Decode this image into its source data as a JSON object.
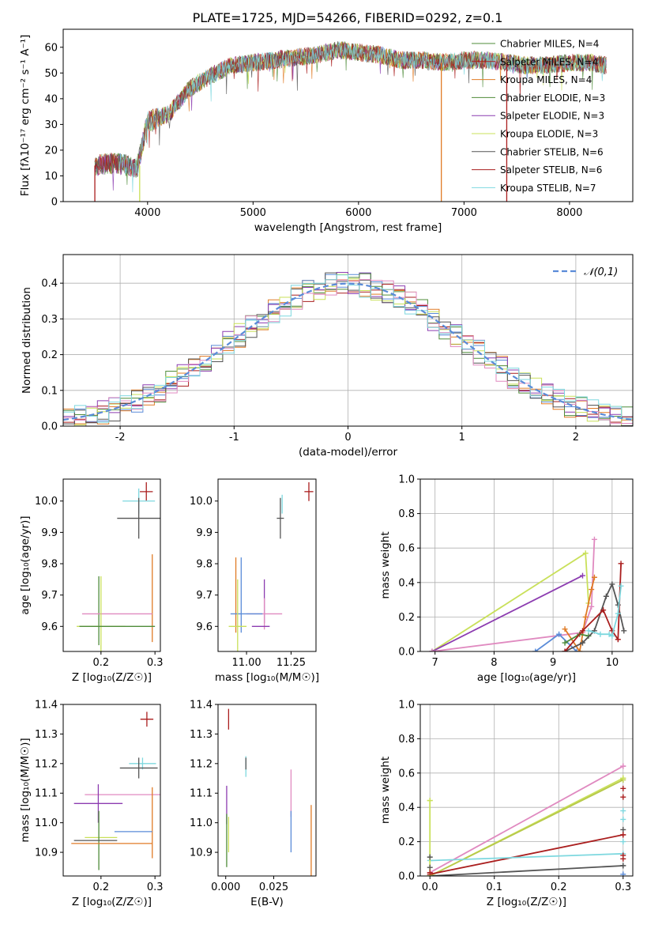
{
  "title": "PLATE=1725, MJD=54266, FIBERID=0292, z=0.1",
  "colors": {
    "orange": "#e07b26",
    "blue": "#5a8bd8",
    "red": "#aa1e1e",
    "purple": "#8c3cb0",
    "green": "#4f8c3a",
    "yellowgreen": "#c9e05a",
    "gray": "#555555",
    "pink": "#e08ac0",
    "cyan": "#7ed8df",
    "olive": "#b7c94a",
    "darkred": "#aa2020"
  },
  "chart_data": [
    {
      "id": "spectrum",
      "type": "line",
      "xlabel": "wavelength [Angstrom, rest frame]",
      "ylabel": "Flux [fλ10⁻¹⁷ erg cm⁻² s⁻¹ A⁻¹]",
      "xlim": [
        3200,
        8600
      ],
      "ylim": [
        0,
        67
      ],
      "xticks": [
        4000,
        5000,
        6000,
        7000,
        8000
      ],
      "yticks": [
        0,
        10,
        20,
        30,
        40,
        50,
        60
      ],
      "grid": false,
      "legend_position": "right",
      "series": [
        {
          "name": "Chabrier MILES, N_SSP=4",
          "color": "#4f8c3a"
        },
        {
          "name": "Salpeter MILES, N_SSP=4",
          "color": "#aa1e1e"
        },
        {
          "name": "Kroupa MILES, N_SSP=4",
          "color": "#e07b26"
        },
        {
          "name": "Chabrier ELODIE, N_SSP=3",
          "color": "#4f8c3a"
        },
        {
          "name": "Salpeter ELODIE, N_SSP=3",
          "color": "#8c3cb0"
        },
        {
          "name": "Kroupa ELODIE, N_SSP=3",
          "color": "#c9e05a"
        },
        {
          "name": "Chabrier STELIB, N_SSP=6",
          "color": "#555555"
        },
        {
          "name": "Salpeter STELIB, N_SSP=6",
          "color": "#aa1e1e"
        },
        {
          "name": "Kroupa STELIB, N_SSP=7",
          "color": "#7ed8df"
        }
      ],
      "continuum": {
        "x": [
          3500,
          3700,
          3900,
          4000,
          4200,
          4400,
          4600,
          4800,
          5000,
          5200,
          5400,
          5600,
          5800,
          6000,
          6200,
          6400,
          6600,
          6800,
          7000,
          7200,
          7400,
          7600,
          7800,
          8000,
          8200,
          8350
        ],
        "y": [
          14,
          15,
          13,
          31,
          34,
          44,
          49,
          53,
          54,
          55,
          56,
          57,
          59,
          58,
          57,
          55,
          55,
          54,
          55,
          55,
          54,
          53,
          53,
          54,
          54,
          53
        ]
      }
    },
    {
      "id": "residual-hist",
      "type": "line",
      "xlabel": "(data-model)/error",
      "ylabel": "Normed distribution",
      "xlim": [
        -2.5,
        2.5
      ],
      "ylim": [
        0,
        0.48
      ],
      "xticks": [
        -2,
        -1,
        0,
        1,
        2
      ],
      "yticks": [
        0.0,
        0.1,
        0.2,
        0.3,
        0.4
      ],
      "grid": true,
      "legend_position": "top-right",
      "legend": "𝒩(0,1)",
      "normal_curve_color": "#5a8bd8",
      "bin_edges": [
        -2.5,
        -2.4,
        -2.3,
        -2.2,
        -2.1,
        -2.0,
        -1.9,
        -1.8,
        -1.7,
        -1.6,
        -1.5,
        -1.4,
        -1.3,
        -1.2,
        -1.1,
        -1.0,
        -0.9,
        -0.8,
        -0.7,
        -0.6,
        -0.5,
        -0.4,
        -0.3,
        -0.2,
        -0.1,
        0.0,
        0.1,
        0.2,
        0.3,
        0.4,
        0.5,
        0.6,
        0.7,
        0.8,
        0.9,
        1.0,
        1.1,
        1.2,
        1.3,
        1.4,
        1.5,
        1.6,
        1.7,
        1.8,
        1.9,
        2.0,
        2.1,
        2.2,
        2.3,
        2.4,
        2.5
      ]
    },
    {
      "id": "age-vs-Z",
      "type": "scatter",
      "xlabel": "Z [log₁₀(Z/Z☉)]",
      "ylabel": "age  [log₁₀(age/yr)]",
      "xlim": [
        0.13,
        0.31
      ],
      "ylim": [
        9.52,
        10.07
      ],
      "xticks": [
        0.2,
        0.3
      ],
      "yticks": [
        9.6,
        9.7,
        9.8,
        9.9,
        10.0
      ],
      "points": [
        {
          "x": 0.284,
          "y": 10.03,
          "xerr": 0.012,
          "yerr": 0.03,
          "color": "#aa1e1e"
        },
        {
          "x": 0.27,
          "y": 10.0,
          "xerr": 0.03,
          "yerr": 0.04,
          "color": "#7ed8df"
        },
        {
          "x": 0.27,
          "y": 9.945,
          "xerr": 0.04,
          "yerr": 0.065,
          "color": "#555555"
        },
        {
          "x": 0.295,
          "y": 9.69,
          "xerr": 0.0,
          "yerr": 0.14,
          "color": "#e07b26"
        },
        {
          "x": 0.196,
          "y": 9.65,
          "xerr": 0.0,
          "yerr": 0.11,
          "color": "#4f8c3a"
        },
        {
          "x": 0.23,
          "y": 9.64,
          "xerr": 0.065,
          "yerr": 0.0,
          "color": "#e08ac0"
        },
        {
          "x": 0.2,
          "y": 9.6,
          "xerr": 0.045,
          "yerr": 0.16,
          "color": "#c9e05a"
        },
        {
          "x": 0.23,
          "y": 9.6,
          "xerr": 0.07,
          "yerr": 0.0,
          "color": "#4f8c3a"
        }
      ]
    },
    {
      "id": "age-vs-mass",
      "type": "scatter",
      "xlabel": "mass [log₁₀(M/M☉)]",
      "xlim": [
        10.84,
        11.39
      ],
      "ylim": [
        9.52,
        10.07
      ],
      "xticks": [
        11.0,
        11.25
      ],
      "xticklabels": [
        "11.00",
        "11.25"
      ],
      "yticks": [
        9.6,
        9.7,
        9.8,
        9.9,
        10.0
      ],
      "points": [
        {
          "x": 11.35,
          "y": 10.03,
          "xerr": 0.025,
          "yerr": 0.03,
          "color": "#aa1e1e"
        },
        {
          "x": 11.2,
          "y": 9.99,
          "xerr": 0.0,
          "yerr": 0.03,
          "color": "#7ed8df"
        },
        {
          "x": 11.19,
          "y": 9.945,
          "xerr": 0.02,
          "yerr": 0.065,
          "color": "#555555"
        },
        {
          "x": 10.97,
          "y": 9.7,
          "xerr": 0.0,
          "yerr": 0.12,
          "color": "#5a8bd8"
        },
        {
          "x": 10.94,
          "y": 9.7,
          "xerr": 0.0,
          "yerr": 0.12,
          "color": "#e07b26"
        },
        {
          "x": 11.1,
          "y": 9.68,
          "xerr": 0.0,
          "yerr": 0.07,
          "color": "#8c3cb0"
        },
        {
          "x": 11.1,
          "y": 9.64,
          "xerr": 0.1,
          "yerr": 0.05,
          "color": "#e08ac0"
        },
        {
          "x": 11.0,
          "y": 9.64,
          "xerr": 0.09,
          "yerr": 0.0,
          "color": "#5a8bd8"
        },
        {
          "x": 10.95,
          "y": 9.6,
          "xerr": 0.05,
          "yerr": 0.15,
          "color": "#c9e05a"
        },
        {
          "x": 11.08,
          "y": 9.6,
          "xerr": 0.05,
          "yerr": 0.0,
          "color": "#8c3cb0"
        }
      ]
    },
    {
      "id": "mass-weight-vs-age",
      "type": "line",
      "xlabel": "age  [log₁₀(age/yr)]",
      "ylabel": "mass weight",
      "xlim": [
        6.75,
        10.35
      ],
      "ylim": [
        0.0,
        1.0
      ],
      "xticks": [
        7,
        8,
        9,
        10
      ],
      "yticks": [
        0.0,
        0.2,
        0.4,
        0.6,
        0.8,
        1.0
      ],
      "grid": true,
      "series": [
        {
          "color": "#c9e05a",
          "x": [
            6.95,
            9.55,
            9.6
          ],
          "y": [
            0.0,
            0.57,
            0.28
          ]
        },
        {
          "color": "#8c3cb0",
          "x": [
            6.95,
            9.5
          ],
          "y": [
            0.0,
            0.44
          ]
        },
        {
          "color": "#e08ac0",
          "x": [
            6.95,
            9.5,
            9.65,
            9.7
          ],
          "y": [
            0.0,
            0.11,
            0.26,
            0.65
          ]
        },
        {
          "color": "#5a8bd8",
          "x": [
            8.7,
            9.1,
            9.4
          ],
          "y": [
            0.0,
            0.1,
            0.0
          ]
        },
        {
          "color": "#e07b26",
          "x": [
            9.2,
            9.45,
            9.55,
            9.65,
            9.7
          ],
          "y": [
            0.13,
            0.0,
            0.2,
            0.36,
            0.43
          ]
        },
        {
          "color": "#4f8c3a",
          "x": [
            9.2,
            9.45,
            9.6
          ],
          "y": [
            0.05,
            0.1,
            0.09
          ]
        },
        {
          "color": "#555555",
          "x": [
            9.2,
            9.5,
            9.7,
            9.9,
            10.0,
            10.1,
            10.2
          ],
          "y": [
            0.0,
            0.05,
            0.12,
            0.32,
            0.39,
            0.27,
            0.12
          ]
        },
        {
          "color": "#aa1e1e",
          "x": [
            9.2,
            9.5,
            9.85,
            10.0,
            10.1,
            10.15
          ],
          "y": [
            0.0,
            0.12,
            0.24,
            0.12,
            0.07,
            0.51
          ]
        },
        {
          "color": "#7ed8df",
          "x": [
            9.6,
            9.8,
            9.95,
            10.0,
            10.1,
            10.15
          ],
          "y": [
            0.12,
            0.1,
            0.1,
            0.09,
            0.22,
            0.38
          ]
        }
      ]
    },
    {
      "id": "mass-vs-Z",
      "type": "scatter",
      "xlabel": "Z [log₁₀(Z/Z☉)]",
      "ylabel": "mass [log₁₀(M/M☉)]",
      "xlim": [
        0.13,
        0.31
      ],
      "ylim": [
        10.82,
        11.4
      ],
      "xticks": [
        0.2,
        0.3
      ],
      "yticks": [
        10.9,
        11.0,
        11.1,
        11.2,
        11.3,
        11.4
      ],
      "points": [
        {
          "x": 0.285,
          "y": 11.35,
          "xerr": 0.012,
          "yerr": 0.025,
          "color": "#aa1e1e"
        },
        {
          "x": 0.277,
          "y": 11.2,
          "xerr": 0.025,
          "yerr": 0.02,
          "color": "#7ed8df"
        },
        {
          "x": 0.27,
          "y": 11.185,
          "xerr": 0.035,
          "yerr": 0.035,
          "color": "#555555"
        },
        {
          "x": 0.25,
          "y": 11.095,
          "xerr": 0.08,
          "yerr": 0.0,
          "color": "#e08ac0"
        },
        {
          "x": 0.295,
          "y": 11.0,
          "xerr": 0.0,
          "yerr": 0.12,
          "color": "#e07b26"
        },
        {
          "x": 0.195,
          "y": 11.065,
          "xerr": 0.045,
          "yerr": 0.065,
          "color": "#8c3cb0"
        },
        {
          "x": 0.26,
          "y": 10.97,
          "xerr": 0.035,
          "yerr": 0.0,
          "color": "#5a8bd8"
        },
        {
          "x": 0.2,
          "y": 10.95,
          "xerr": 0.03,
          "yerr": 0.0,
          "color": "#c9e05a"
        },
        {
          "x": 0.196,
          "y": 10.94,
          "xerr": 0.0,
          "yerr": 0.1,
          "color": "#4f8c3a"
        },
        {
          "x": 0.22,
          "y": 10.93,
          "xerr": 0.075,
          "yerr": 0.0,
          "color": "#e07b26"
        },
        {
          "x": 0.19,
          "y": 10.94,
          "xerr": 0.04,
          "yerr": 0.0,
          "color": "#555555"
        }
      ]
    },
    {
      "id": "mass-vs-EBV",
      "type": "scatter",
      "xlabel": "E(B-V)",
      "xlim": [
        -0.004,
        0.047
      ],
      "ylim": [
        10.82,
        11.4
      ],
      "xticks": [
        0.0,
        0.025
      ],
      "xticklabels": [
        "0.000",
        "0.025"
      ],
      "yticks": [
        10.9,
        11.0,
        11.1,
        11.2,
        11.3,
        11.4
      ],
      "points": [
        {
          "x": 0.0015,
          "y": 11.35,
          "xerr": 0.0,
          "yerr": 0.035,
          "color": "#aa1e1e"
        },
        {
          "x": 0.0105,
          "y": 11.19,
          "xerr": 0.0,
          "yerr": 0.035,
          "color": "#7ed8df"
        },
        {
          "x": 0.0105,
          "y": 11.2,
          "xerr": 0.0,
          "yerr": 0.02,
          "color": "#555555"
        },
        {
          "x": 0.034,
          "y": 11.1,
          "xerr": 0.0,
          "yerr": 0.08,
          "color": "#e08ac0"
        },
        {
          "x": 0.0005,
          "y": 11.06,
          "xerr": 0.0,
          "yerr": 0.065,
          "color": "#8c3cb0"
        },
        {
          "x": 0.034,
          "y": 10.97,
          "xerr": 0.0,
          "yerr": 0.07,
          "color": "#5a8bd8"
        },
        {
          "x": 0.0445,
          "y": 10.94,
          "xerr": 0.0,
          "yerr": 0.12,
          "color": "#e07b26"
        },
        {
          "x": 0.0005,
          "y": 10.94,
          "xerr": 0.0,
          "yerr": 0.09,
          "color": "#4f8c3a"
        },
        {
          "x": 0.0015,
          "y": 10.96,
          "xerr": 0.0,
          "yerr": 0.06,
          "color": "#c9e05a"
        }
      ]
    },
    {
      "id": "mass-weight-vs-Z",
      "type": "line",
      "xlabel": "Z [log₁₀(Z/Z☉)]",
      "ylabel": "mass weight",
      "xlim": [
        -0.015,
        0.315
      ],
      "ylim": [
        0.0,
        1.0
      ],
      "xticks": [
        0.0,
        0.1,
        0.2,
        0.3
      ],
      "yticks": [
        0.0,
        0.2,
        0.4,
        0.6,
        0.8,
        1.0
      ],
      "grid": true,
      "series": [
        {
          "color": "#e08ac0",
          "x": [
            0.0,
            0.3
          ],
          "y": [
            0.02,
            0.64
          ]
        },
        {
          "color": "#c9e05a",
          "x": [
            0.0,
            0.3
          ],
          "y": [
            0.0,
            0.57
          ]
        },
        {
          "color": "#b7c94a",
          "x": [
            0.0,
            0.3
          ],
          "y": [
            0.0,
            0.56
          ]
        },
        {
          "color": "#aa1e1e",
          "x": [
            0.0,
            0.3
          ],
          "y": [
            0.01,
            0.24
          ]
        },
        {
          "color": "#7ed8df",
          "x": [
            0.0,
            0.3
          ],
          "y": [
            0.09,
            0.13
          ]
        },
        {
          "color": "#555555",
          "x": [
            0.0,
            0.3
          ],
          "y": [
            0.0,
            0.06
          ]
        },
        {
          "color": "#c9e05a",
          "x": [
            0.0,
            0.0
          ],
          "y": [
            0.0,
            0.44
          ]
        }
      ],
      "markers": [
        {
          "x": 0.0,
          "y": 0.44,
          "color": "#c9e05a"
        },
        {
          "x": 0.0,
          "y": 0.11,
          "color": "#555555"
        },
        {
          "x": 0.0,
          "y": 0.05,
          "color": "#555555"
        },
        {
          "x": 0.0,
          "y": 0.02,
          "color": "#aa1e1e"
        },
        {
          "x": 0.3,
          "y": 0.64,
          "color": "#e08ac0"
        },
        {
          "x": 0.3,
          "y": 0.57,
          "color": "#c9e05a"
        },
        {
          "x": 0.3,
          "y": 0.51,
          "color": "#aa1e1e"
        },
        {
          "x": 0.3,
          "y": 0.46,
          "color": "#aa1e1e"
        },
        {
          "x": 0.3,
          "y": 0.38,
          "color": "#7ed8df"
        },
        {
          "x": 0.3,
          "y": 0.33,
          "color": "#7ed8df"
        },
        {
          "x": 0.3,
          "y": 0.27,
          "color": "#555555"
        },
        {
          "x": 0.3,
          "y": 0.24,
          "color": "#aa1e1e"
        },
        {
          "x": 0.3,
          "y": 0.2,
          "color": "#7ed8df"
        },
        {
          "x": 0.3,
          "y": 0.12,
          "color": "#aa1e1e"
        },
        {
          "x": 0.3,
          "y": 0.1,
          "color": "#aa1e1e"
        },
        {
          "x": 0.3,
          "y": 0.06,
          "color": "#555555"
        },
        {
          "x": 0.3,
          "y": 0.01,
          "color": "#5a8bd8"
        }
      ]
    }
  ]
}
